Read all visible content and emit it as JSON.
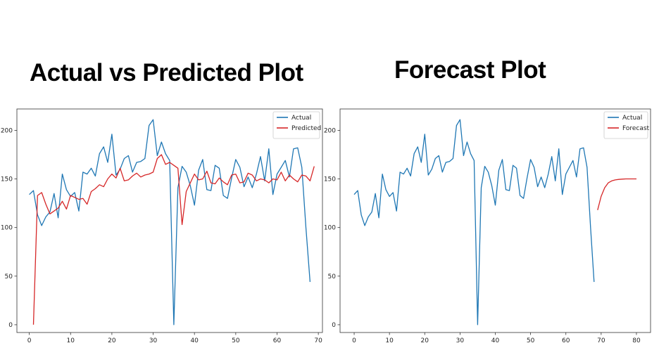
{
  "chart_data": [
    {
      "type": "line",
      "title": "Actual vs Predicted Plot",
      "xlim": [
        -3,
        71
      ],
      "ylim": [
        -8,
        222
      ],
      "xticks": [
        0,
        10,
        20,
        30,
        40,
        50,
        60,
        70
      ],
      "yticks": [
        0,
        50,
        100,
        150,
        200
      ],
      "legend": "top-right",
      "series": [
        {
          "name": "Actual",
          "color": "#1f77b4",
          "x": [
            0,
            1,
            2,
            3,
            4,
            5,
            6,
            7,
            8,
            9,
            10,
            11,
            12,
            13,
            14,
            15,
            16,
            17,
            18,
            19,
            20,
            21,
            22,
            23,
            24,
            25,
            26,
            27,
            28,
            29,
            30,
            31,
            32,
            33,
            34,
            35,
            36,
            37,
            38,
            39,
            40,
            41,
            42,
            43,
            44,
            45,
            46,
            47,
            48,
            49,
            50,
            51,
            52,
            53,
            54,
            55,
            56,
            57,
            58,
            59,
            60,
            61,
            62,
            63,
            64,
            65,
            66,
            67,
            68
          ],
          "values": [
            134,
            138,
            113,
            102,
            111,
            116,
            135,
            110,
            155,
            139,
            132,
            136,
            117,
            157,
            155,
            161,
            153,
            176,
            183,
            167,
            196,
            154,
            160,
            171,
            174,
            157,
            167,
            168,
            171,
            205,
            211,
            174,
            188,
            176,
            169,
            0,
            141,
            163,
            157,
            143,
            123,
            159,
            170,
            139,
            138,
            164,
            161,
            133,
            130,
            151,
            170,
            162,
            142,
            152,
            141,
            155,
            173,
            148,
            181,
            134,
            155,
            162,
            169,
            152,
            181,
            182,
            162,
            100,
            44
          ]
        },
        {
          "name": "Predicted",
          "color": "#d62728",
          "x": [
            1,
            2,
            3,
            4,
            5,
            6,
            7,
            8,
            9,
            10,
            11,
            12,
            13,
            14,
            15,
            16,
            17,
            18,
            19,
            20,
            21,
            22,
            23,
            24,
            25,
            26,
            27,
            28,
            29,
            30,
            31,
            32,
            33,
            34,
            35,
            36,
            37,
            38,
            39,
            40,
            41,
            42,
            43,
            44,
            45,
            46,
            47,
            48,
            49,
            50,
            51,
            52,
            53,
            54,
            55,
            56,
            57,
            58,
            59,
            60,
            61,
            62,
            63,
            64,
            65,
            66,
            67,
            68,
            69
          ],
          "values": [
            0,
            133,
            136,
            124,
            114,
            117,
            120,
            127,
            119,
            133,
            131,
            129,
            130,
            124,
            137,
            140,
            144,
            142,
            150,
            155,
            151,
            161,
            148,
            149,
            153,
            156,
            152,
            154,
            155,
            157,
            171,
            175,
            165,
            167,
            164,
            161,
            103,
            137,
            146,
            155,
            149,
            150,
            158,
            146,
            145,
            151,
            147,
            144,
            154,
            155,
            146,
            147,
            156,
            154,
            148,
            150,
            149,
            146,
            150,
            149,
            157,
            148,
            154,
            150,
            147,
            154,
            153,
            148,
            163
          ]
        }
      ]
    },
    {
      "type": "line",
      "title": "Forecast Plot",
      "xlim": [
        -4,
        84
      ],
      "ylim": [
        -8,
        222
      ],
      "xticks": [
        0,
        10,
        20,
        30,
        40,
        50,
        60,
        70,
        80
      ],
      "yticks": [
        0,
        50,
        100,
        150,
        200
      ],
      "legend": "top-right",
      "series": [
        {
          "name": "Actual",
          "color": "#1f77b4",
          "x": [
            0,
            1,
            2,
            3,
            4,
            5,
            6,
            7,
            8,
            9,
            10,
            11,
            12,
            13,
            14,
            15,
            16,
            17,
            18,
            19,
            20,
            21,
            22,
            23,
            24,
            25,
            26,
            27,
            28,
            29,
            30,
            31,
            32,
            33,
            34,
            35,
            36,
            37,
            38,
            39,
            40,
            41,
            42,
            43,
            44,
            45,
            46,
            47,
            48,
            49,
            50,
            51,
            52,
            53,
            54,
            55,
            56,
            57,
            58,
            59,
            60,
            61,
            62,
            63,
            64,
            65,
            66,
            67,
            68
          ],
          "values": [
            134,
            138,
            113,
            102,
            111,
            116,
            135,
            110,
            155,
            139,
            132,
            136,
            117,
            157,
            155,
            161,
            153,
            176,
            183,
            167,
            196,
            154,
            160,
            171,
            174,
            157,
            167,
            168,
            171,
            205,
            211,
            174,
            188,
            176,
            169,
            0,
            141,
            163,
            157,
            143,
            123,
            159,
            170,
            139,
            138,
            164,
            161,
            133,
            130,
            151,
            170,
            162,
            142,
            152,
            141,
            155,
            173,
            148,
            181,
            134,
            155,
            162,
            169,
            152,
            181,
            182,
            162,
            100,
            44
          ]
        },
        {
          "name": "Forecast",
          "color": "#d62728",
          "x": [
            69,
            70,
            71,
            72,
            73,
            74,
            75,
            76,
            77,
            78,
            79,
            80
          ],
          "values": [
            118,
            132,
            141,
            146,
            148,
            149,
            149.5,
            149.8,
            150,
            150,
            150,
            150
          ]
        }
      ]
    }
  ]
}
